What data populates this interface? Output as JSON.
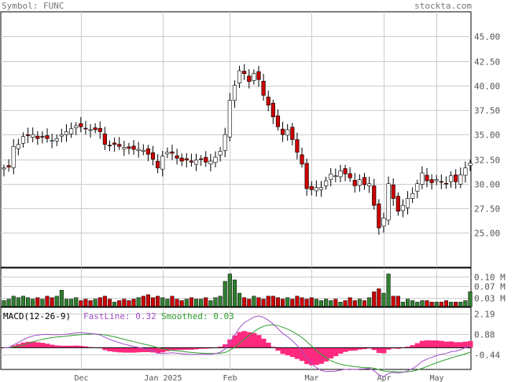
{
  "header": {
    "symbol_label": "Symbol: FUNC",
    "site": "stockta.com"
  },
  "colors": {
    "up": "#2f7f2f",
    "down": "#cc0000",
    "candle_up": "#ffffff",
    "candle_down": "#cc0000",
    "grid": "#cccccc",
    "macd_line": "#a14fc8",
    "signal_line": "#2e9e2e",
    "histogram": "#ff2a7f"
  },
  "chart_data": [
    {
      "type": "candlestick",
      "title": "FUNC",
      "x_ticks": [
        "Dec",
        "Jan 2025",
        "Feb",
        "Mar",
        "Apr",
        "May"
      ],
      "y_ticks": [
        25.0,
        27.5,
        30.0,
        32.5,
        35.0,
        37.5,
        40.0,
        42.5,
        45.0
      ],
      "ylim": [
        21.5,
        47.5
      ],
      "grid": true,
      "closes": [
        31.6,
        31.7,
        33.8,
        34.0,
        34.8,
        34.9,
        35.0,
        34.6,
        34.8,
        34.6,
        34.4,
        34.6,
        35.0,
        35.3,
        35.6,
        35.9,
        35.8,
        35.6,
        35.5,
        35.5,
        35.3,
        34.0,
        33.9,
        34.0,
        33.8,
        33.7,
        33.6,
        33.5,
        33.5,
        33.4,
        33.0,
        32.5,
        31.6,
        32.8,
        33.2,
        33.1,
        32.6,
        32.3,
        32.4,
        32.2,
        32.4,
        32.5,
        32.2,
        32.3,
        32.7,
        33.3,
        35.0,
        38.5,
        40.0,
        41.5,
        41.2,
        40.4,
        41.2,
        40.6,
        39.0,
        38.0,
        36.8,
        35.8,
        35.0,
        35.5,
        34.5,
        33.2,
        32.0,
        29.5,
        29.4,
        29.6,
        29.6,
        30.3,
        31.0,
        30.8,
        31.3,
        31.0,
        30.6,
        29.8,
        30.4,
        29.9,
        30.0,
        27.8,
        25.5,
        26.5,
        30.0,
        28.5,
        27.2,
        27.8,
        28.5,
        29.0,
        30.0,
        31.1,
        30.3,
        30.1,
        30.4,
        30.2,
        30.0,
        30.8,
        30.2,
        30.9,
        31.6,
        32.1
      ],
      "volume": {
        "unit": "M",
        "y_ticks": [
          0.03,
          0.07,
          0.1
        ],
        "values": [
          0.02,
          0.025,
          0.035,
          0.03,
          0.035,
          0.03,
          0.025,
          0.03,
          0.025,
          0.035,
          0.03,
          0.035,
          0.055,
          0.025,
          0.025,
          0.03,
          0.02,
          0.025,
          0.02,
          0.025,
          0.03,
          0.035,
          0.025,
          0.015,
          0.02,
          0.025,
          0.02,
          0.025,
          0.03,
          0.035,
          0.04,
          0.03,
          0.035,
          0.03,
          0.025,
          0.035,
          0.025,
          0.02,
          0.025,
          0.03,
          0.025,
          0.025,
          0.03,
          0.02,
          0.03,
          0.035,
          0.085,
          0.11,
          0.09,
          0.045,
          0.03,
          0.025,
          0.035,
          0.03,
          0.025,
          0.035,
          0.035,
          0.03,
          0.025,
          0.03,
          0.025,
          0.035,
          0.03,
          0.025,
          0.03,
          0.025,
          0.02,
          0.025,
          0.02,
          0.025,
          0.015,
          0.02,
          0.03,
          0.02,
          0.025,
          0.02,
          0.03,
          0.05,
          0.06,
          0.045,
          0.11,
          0.035,
          0.035,
          0.015,
          0.025,
          0.02,
          0.015,
          0.02,
          0.02,
          0.015,
          0.015,
          0.015,
          0.02,
          0.015,
          0.015,
          0.015,
          0.02,
          0.05
        ]
      }
    },
    {
      "type": "line",
      "title": "MACD(12-26-9)",
      "legend": [
        {
          "label": "FastLine: 0.32"
        },
        {
          "label": "Smoothed: 0.03"
        }
      ],
      "y_ticks": [
        2.19,
        0.88,
        -0.44
      ],
      "ylim": [
        -1.4,
        2.6
      ]
    }
  ]
}
